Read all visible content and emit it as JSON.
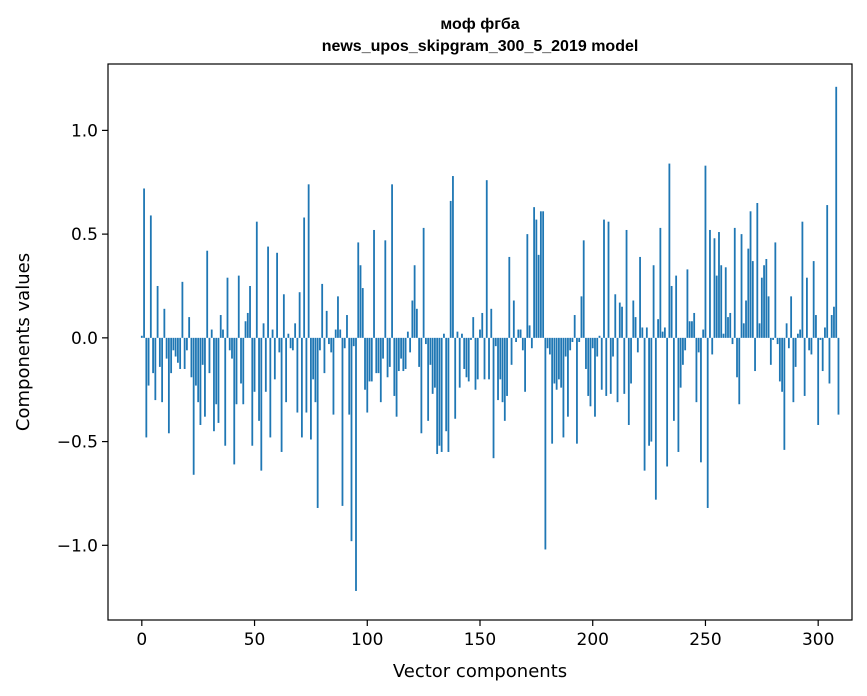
{
  "chart_data": {
    "type": "bar",
    "title_line1": "моф фгба",
    "title_line2": "news_upos_skipgram_300_5_2019 model",
    "xlabel": "Vector components",
    "ylabel": "Components values",
    "xlim": [
      -15,
      315
    ],
    "ylim": [
      -1.36,
      1.32
    ],
    "xticks": [
      0,
      50,
      100,
      150,
      200,
      250,
      300
    ],
    "xtick_labels": [
      "0",
      "50",
      "100",
      "150",
      "200",
      "250",
      "300"
    ],
    "yticks": [
      -1.0,
      -0.5,
      0.0,
      0.5,
      1.0
    ],
    "ytick_labels": [
      "−1.0",
      "−0.5",
      "0.0",
      "0.5",
      "1.0"
    ],
    "bar_color": "#1f77b4",
    "x_start": 0,
    "values": [
      0.01,
      0.72,
      -0.48,
      -0.23,
      0.59,
      -0.17,
      -0.3,
      0.25,
      -0.14,
      -0.31,
      0.14,
      -0.1,
      -0.46,
      -0.17,
      -0.06,
      -0.09,
      -0.12,
      -0.15,
      0.27,
      -0.15,
      -0.06,
      0.1,
      -0.19,
      -0.66,
      -0.23,
      -0.31,
      -0.42,
      -0.13,
      -0.38,
      0.42,
      -0.17,
      0.04,
      -0.45,
      -0.32,
      -0.41,
      0.11,
      0.04,
      -0.52,
      0.29,
      -0.06,
      -0.1,
      -0.61,
      -0.32,
      0.3,
      -0.22,
      -0.32,
      0.08,
      0.12,
      0.25,
      -0.52,
      -0.26,
      0.56,
      -0.4,
      -0.64,
      0.07,
      -0.26,
      0.44,
      -0.48,
      0.04,
      -0.2,
      0.41,
      -0.07,
      -0.55,
      0.21,
      -0.31,
      0.02,
      -0.05,
      -0.06,
      0.07,
      -0.36,
      0.22,
      -0.48,
      0.58,
      -0.36,
      0.74,
      -0.49,
      -0.2,
      -0.31,
      -0.82,
      -0.06,
      0.26,
      -0.17,
      0.13,
      -0.03,
      -0.07,
      -0.37,
      0.04,
      0.2,
      0.04,
      -0.81,
      -0.05,
      0.11,
      -0.37,
      -0.98,
      -0.04,
      -1.22,
      0.46,
      0.35,
      0.24,
      -0.25,
      -0.36,
      -0.21,
      -0.21,
      0.52,
      -0.17,
      -0.17,
      -0.31,
      -0.1,
      0.47,
      -0.19,
      -0.14,
      0.74,
      -0.28,
      -0.38,
      -0.16,
      -0.1,
      -0.16,
      -0.15,
      0.03,
      -0.07,
      0.18,
      0.35,
      0.14,
      -0.14,
      -0.46,
      0.53,
      -0.03,
      -0.4,
      -0.13,
      -0.27,
      -0.24,
      -0.56,
      -0.52,
      -0.55,
      0.02,
      -0.45,
      -0.55,
      0.66,
      0.78,
      -0.39,
      0.03,
      -0.24,
      0.02,
      -0.15,
      -0.19,
      -0.21,
      -0.01,
      0.1,
      -0.25,
      -0.2,
      0.04,
      0.12,
      -0.2,
      0.76,
      -0.2,
      0.14,
      -0.58,
      -0.04,
      -0.3,
      -0.2,
      -0.31,
      -0.4,
      -0.28,
      0.39,
      -0.13,
      0.18,
      -0.02,
      0.04,
      0.04,
      -0.06,
      -0.26,
      0.5,
      0.06,
      -0.05,
      0.63,
      0.57,
      0.4,
      0.61,
      0.61,
      -1.02,
      -0.05,
      -0.08,
      -0.51,
      -0.22,
      -0.25,
      -0.2,
      -0.24,
      -0.48,
      -0.09,
      -0.38,
      -0.06,
      -0.02,
      0.11,
      -0.51,
      -0.02,
      0.2,
      0.47,
      -0.15,
      -0.28,
      -0.33,
      -0.05,
      -0.38,
      -0.09,
      0.01,
      -0.25,
      0.57,
      -0.28,
      0.56,
      -0.27,
      -0.09,
      0.21,
      -0.31,
      0.17,
      0.15,
      -0.27,
      0.52,
      -0.42,
      -0.22,
      0.18,
      0.1,
      -0.07,
      0.39,
      0.05,
      -0.64,
      0.05,
      -0.52,
      -0.5,
      0.35,
      -0.78,
      0.09,
      0.53,
      0.03,
      0.05,
      -0.62,
      0.84,
      0.25,
      -0.4,
      0.3,
      -0.55,
      -0.24,
      -0.13,
      -0.06,
      0.33,
      0.08,
      0.08,
      0.12,
      -0.31,
      -0.07,
      -0.6,
      0.04,
      0.83,
      -0.82,
      0.52,
      -0.08,
      0.48,
      0.3,
      0.51,
      0.35,
      0.02,
      0.34,
      0.1,
      0.12,
      -0.03,
      0.53,
      -0.19,
      -0.32,
      0.5,
      0.07,
      0.18,
      0.43,
      0.61,
      0.37,
      -0.16,
      0.65,
      0.07,
      0.29,
      0.35,
      0.38,
      0.2,
      -0.13,
      -0.01,
      0.46,
      -0.03,
      -0.21,
      -0.26,
      -0.54,
      0.07,
      -0.05,
      0.2,
      -0.31,
      -0.14,
      0.02,
      0.04,
      0.56,
      -0.28,
      0.29,
      -0.06,
      -0.08,
      0.37,
      0.11,
      -0.42,
      -0.01,
      -0.16,
      0.05,
      0.64,
      -0.22,
      0.11,
      0.15,
      1.21,
      -0.37
    ]
  }
}
